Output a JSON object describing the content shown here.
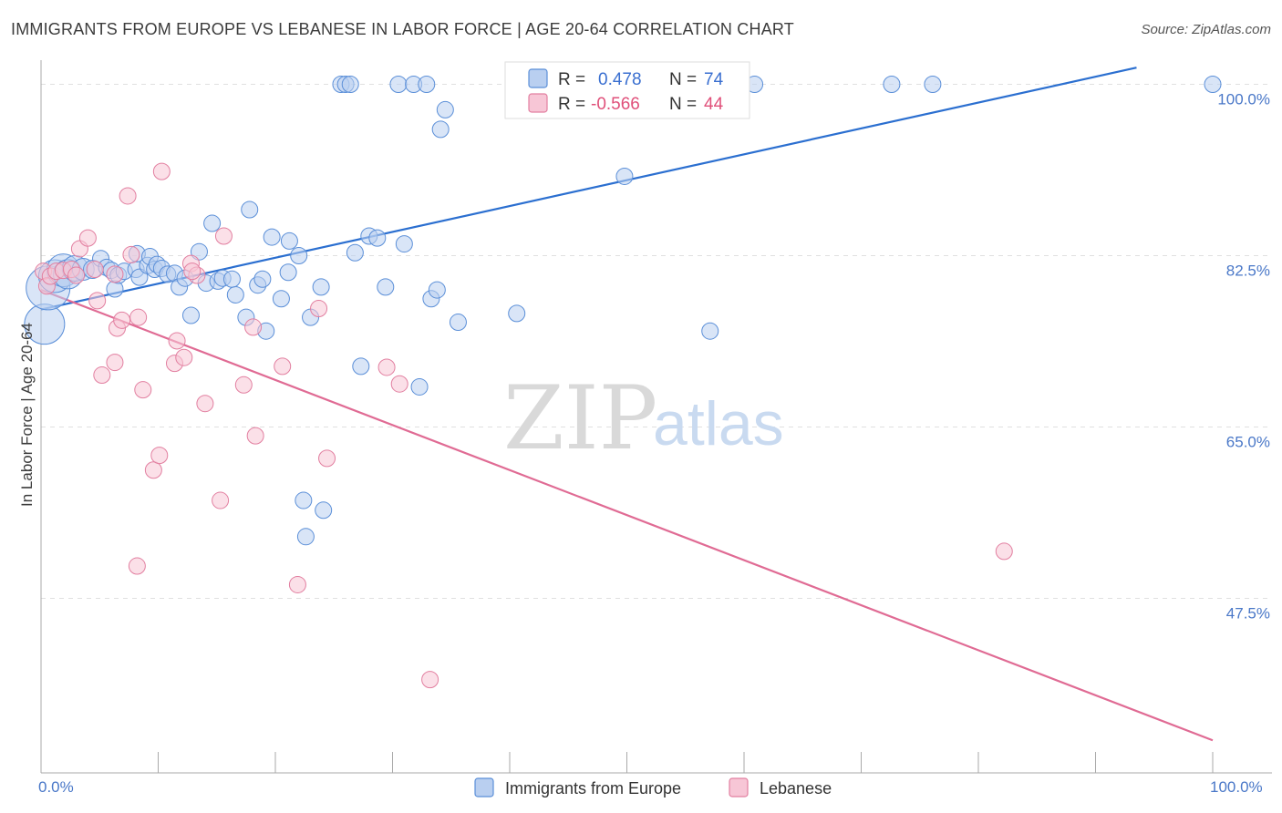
{
  "title": "IMMIGRANTS FROM EUROPE VS LEBANESE IN LABOR FORCE | AGE 20-64 CORRELATION CHART",
  "source": "Source: ZipAtlas.com",
  "watermark": {
    "zip": "ZIP",
    "atlas": "atlas"
  },
  "colors": {
    "blue": "#5b8fd8",
    "blue_fill": "#b9cff0",
    "pink": "#e27fa0",
    "pink_fill": "#f7c6d6",
    "blue_line": "#2b6fd0",
    "pink_line": "#e06b94",
    "grid": "#e0e0e0"
  },
  "legend_top": {
    "r_label": "R =",
    "n_label": "N =",
    "rows": [
      {
        "r": "0.478",
        "n": "74"
      },
      {
        "r": "-0.566",
        "n": "44"
      }
    ]
  },
  "chart_data": {
    "type": "scatter",
    "ylabel": "In Labor Force | Age 20-64",
    "xlim": [
      0,
      100
    ],
    "ylim": [
      32,
      102
    ],
    "y_ticks": [
      {
        "value": 100.0,
        "label": "100.0%"
      },
      {
        "value": 82.5,
        "label": "82.5%"
      },
      {
        "value": 65.0,
        "label": "65.0%"
      },
      {
        "value": 47.5,
        "label": "47.5%"
      }
    ],
    "x_tick_labels": {
      "min": "0.0%",
      "max": "100.0%"
    },
    "x_minor_ticks": [
      10,
      20,
      30,
      40,
      50,
      60,
      70,
      80,
      90,
      100
    ],
    "series": [
      {
        "name": "Immigrants from Europe",
        "color": "#5b8fd8",
        "trend": {
          "x": [
            0,
            93.5
          ],
          "y": [
            77.0,
            101.7
          ]
        },
        "points": [
          [
            0.3,
            75.5,
            22
          ],
          [
            0.6,
            79.2,
            24
          ],
          [
            1.2,
            80.4,
            18
          ],
          [
            1.9,
            81.0,
            18
          ],
          [
            2.3,
            80.6,
            16
          ],
          [
            2.9,
            81.2,
            14
          ],
          [
            3.6,
            81.1,
            12
          ],
          [
            4.4,
            81.1,
            10
          ],
          [
            5.1,
            82.2,
            9
          ],
          [
            5.6,
            81.3,
            9
          ],
          [
            6.0,
            81.0,
            9
          ],
          [
            6.3,
            79.1,
            9
          ],
          [
            6.6,
            80.5,
            9
          ],
          [
            7.1,
            80.9,
            9
          ],
          [
            8.1,
            81.1,
            9
          ],
          [
            8.2,
            82.7,
            9
          ],
          [
            8.4,
            80.3,
            9
          ],
          [
            9.1,
            81.5,
            9
          ],
          [
            9.3,
            82.4,
            9
          ],
          [
            9.7,
            81.1,
            9
          ],
          [
            9.9,
            81.6,
            9
          ],
          [
            10.3,
            81.2,
            9
          ],
          [
            10.8,
            80.6,
            9
          ],
          [
            11.4,
            80.7,
            9
          ],
          [
            11.8,
            79.3,
            9
          ],
          [
            12.3,
            80.2,
            9
          ],
          [
            12.8,
            76.4,
            9
          ],
          [
            13.5,
            82.9,
            9
          ],
          [
            14.1,
            79.7,
            9
          ],
          [
            14.6,
            85.8,
            9
          ],
          [
            15.1,
            79.9,
            9
          ],
          [
            15.5,
            80.2,
            9
          ],
          [
            16.3,
            80.1,
            9
          ],
          [
            16.6,
            78.5,
            9
          ],
          [
            17.5,
            76.2,
            9
          ],
          [
            17.8,
            87.2,
            9
          ],
          [
            18.5,
            79.5,
            9
          ],
          [
            18.9,
            80.1,
            9
          ],
          [
            19.2,
            74.8,
            9
          ],
          [
            19.7,
            84.4,
            9
          ],
          [
            20.5,
            78.1,
            9
          ],
          [
            21.1,
            80.8,
            9
          ],
          [
            21.2,
            84.0,
            9
          ],
          [
            22.0,
            82.5,
            9
          ],
          [
            23.0,
            76.2,
            9
          ],
          [
            23.9,
            79.3,
            9
          ],
          [
            25.6,
            100.0,
            9
          ],
          [
            26.0,
            100.0,
            9
          ],
          [
            26.8,
            82.8,
            9
          ],
          [
            27.3,
            71.2,
            9
          ],
          [
            28.0,
            84.5,
            9
          ],
          [
            28.7,
            84.3,
            9
          ],
          [
            29.4,
            79.3,
            9
          ],
          [
            30.5,
            100.0,
            9
          ],
          [
            31.0,
            83.7,
            9
          ],
          [
            31.8,
            100.0,
            9
          ],
          [
            32.3,
            69.1,
            9
          ],
          [
            32.9,
            100.0,
            9
          ],
          [
            33.3,
            78.1,
            9
          ],
          [
            34.1,
            95.4,
            9
          ],
          [
            34.5,
            97.4,
            9
          ],
          [
            22.4,
            57.5,
            9
          ],
          [
            24.1,
            56.5,
            9
          ],
          [
            22.6,
            53.8,
            9
          ],
          [
            35.6,
            75.7,
            9
          ],
          [
            40.6,
            76.6,
            9
          ],
          [
            49.8,
            90.6,
            9
          ],
          [
            57.1,
            74.8,
            9
          ],
          [
            60.9,
            100.0,
            9
          ],
          [
            72.6,
            100.0,
            9
          ],
          [
            76.1,
            100.0,
            9
          ],
          [
            100.0,
            100.0,
            9
          ],
          [
            33.8,
            79.0,
            9
          ],
          [
            26.4,
            100.0,
            9
          ]
        ]
      },
      {
        "name": "Lebanese",
        "color": "#e27fa0",
        "trend": {
          "x": [
            0,
            100
          ],
          "y": [
            79.0,
            33.0
          ]
        },
        "points": [
          [
            0.2,
            80.9,
            9
          ],
          [
            0.5,
            79.4,
            9
          ],
          [
            0.8,
            80.4,
            9
          ],
          [
            1.3,
            80.9,
            9
          ],
          [
            1.9,
            81.0,
            9
          ],
          [
            2.6,
            81.1,
            9
          ],
          [
            3.0,
            80.5,
            9
          ],
          [
            3.3,
            83.2,
            9
          ],
          [
            4.0,
            84.3,
            9
          ],
          [
            4.6,
            81.1,
            9
          ],
          [
            4.8,
            77.9,
            9
          ],
          [
            5.2,
            70.3,
            9
          ],
          [
            6.3,
            80.6,
            9
          ],
          [
            6.3,
            71.6,
            9
          ],
          [
            6.5,
            75.1,
            9
          ],
          [
            6.9,
            75.9,
            9
          ],
          [
            7.4,
            88.6,
            9
          ],
          [
            7.7,
            82.6,
            9
          ],
          [
            8.2,
            50.8,
            9
          ],
          [
            8.3,
            76.2,
            9
          ],
          [
            8.7,
            68.8,
            9
          ],
          [
            9.6,
            60.6,
            9
          ],
          [
            10.1,
            62.1,
            9
          ],
          [
            10.3,
            91.1,
            9
          ],
          [
            11.4,
            71.5,
            9
          ],
          [
            11.6,
            73.8,
            9
          ],
          [
            12.2,
            72.1,
            9
          ],
          [
            12.8,
            81.7,
            9
          ],
          [
            13.3,
            80.5,
            9
          ],
          [
            14.0,
            67.4,
            9
          ],
          [
            15.3,
            57.5,
            9
          ],
          [
            15.6,
            84.5,
            9
          ],
          [
            17.3,
            69.3,
            9
          ],
          [
            18.1,
            75.2,
            9
          ],
          [
            18.3,
            64.1,
            9
          ],
          [
            20.6,
            71.2,
            9
          ],
          [
            21.9,
            48.9,
            9
          ],
          [
            23.7,
            77.1,
            9
          ],
          [
            24.4,
            61.8,
            9
          ],
          [
            29.5,
            71.1,
            9
          ],
          [
            30.6,
            69.4,
            9
          ],
          [
            33.2,
            39.2,
            9
          ],
          [
            82.2,
            52.3,
            9
          ],
          [
            12.9,
            80.9,
            9
          ]
        ]
      }
    ]
  },
  "bottom_legend": [
    {
      "label": "Immigrants from Europe"
    },
    {
      "label": "Lebanese"
    }
  ]
}
